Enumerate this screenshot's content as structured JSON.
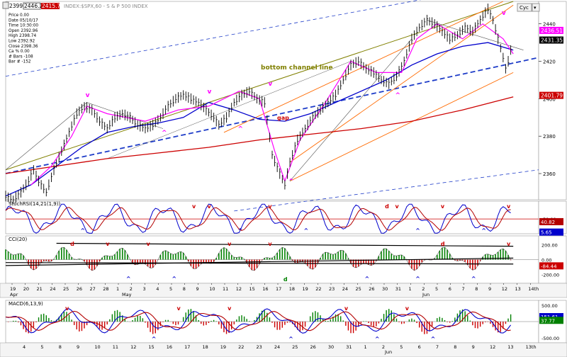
{
  "header": {
    "title": "INDEX:$SPX,60 - S & P 500 INDEX",
    "price_boxes": [
      "2399",
      "2446.20",
      "2415.70"
    ],
    "info_lines": [
      "Price 0.00",
      "Date 05/10/17",
      "Time 10:30:00",
      "Open 2392.96",
      "High 2398.74",
      "Low 2392.92",
      "Close 2398.36",
      "Ca % 0.00",
      "# Bars -108",
      "Bar # -152"
    ],
    "cyc_label": "Cyc"
  },
  "colors": {
    "price": "#000000",
    "ma_fast": "#0000cc",
    "ma_slow": "#cc0000",
    "magenta": "#ff00ff",
    "trend_olive": "#808000",
    "channel_orange": "#ff6a00",
    "dashed_blue": "#1e3cc8",
    "stoch_blue": "#0000cc",
    "stoch_red": "#b40000",
    "hist_green": "#008000",
    "hist_red": "#cc0000"
  },
  "chart_data": [
    {
      "id": "price-panel",
      "type": "line",
      "title": "",
      "x_axis": {
        "ticks": [
          "19",
          "20",
          "21",
          "24",
          "25",
          "26",
          "27",
          "28",
          "1",
          "2",
          "3",
          "4",
          "5",
          "8",
          "9",
          "10",
          "11",
          "12",
          "15",
          "16",
          "17",
          "18",
          "19",
          "22",
          "23",
          "24",
          "25",
          "26",
          "30",
          "31",
          "1",
          "2",
          "5",
          "6",
          "7",
          "8",
          "9",
          "12",
          "13",
          "14th"
        ],
        "month_labels": [
          "Apr",
          "May",
          "Jun"
        ]
      },
      "y_axis": {
        "ticks": [
          2360,
          2380,
          2400,
          2420,
          2440
        ],
        "range": [
          2346,
          2452
        ]
      },
      "price_points": [
        [
          0,
          2348
        ],
        [
          3,
          2346
        ],
        [
          6,
          2350
        ],
        [
          9,
          2356
        ],
        [
          11,
          2362
        ],
        [
          13,
          2356
        ],
        [
          16,
          2350
        ],
        [
          19,
          2362
        ],
        [
          22,
          2372
        ],
        [
          25,
          2382
        ],
        [
          28,
          2392
        ],
        [
          31,
          2396
        ],
        [
          34,
          2394
        ],
        [
          37,
          2388
        ],
        [
          40,
          2384
        ],
        [
          43,
          2390
        ],
        [
          46,
          2392
        ],
        [
          49,
          2390
        ],
        [
          52,
          2386
        ],
        [
          55,
          2384
        ],
        [
          58,
          2386
        ],
        [
          61,
          2390
        ],
        [
          64,
          2396
        ],
        [
          67,
          2400
        ],
        [
          70,
          2402
        ],
        [
          73,
          2400
        ],
        [
          76,
          2398
        ],
        [
          79,
          2394
        ],
        [
          82,
          2390
        ],
        [
          84,
          2386
        ],
        [
          87,
          2390
        ],
        [
          90,
          2398
        ],
        [
          93,
          2402
        ],
        [
          96,
          2404
        ],
        [
          99,
          2400
        ],
        [
          102,
          2398
        ],
        [
          105,
          2370
        ],
        [
          108,
          2360
        ],
        [
          110,
          2354
        ],
        [
          112,
          2366
        ],
        [
          115,
          2378
        ],
        [
          118,
          2384
        ],
        [
          121,
          2390
        ],
        [
          124,
          2394
        ],
        [
          127,
          2398
        ],
        [
          130,
          2402
        ],
        [
          133,
          2410
        ],
        [
          136,
          2418
        ],
        [
          139,
          2420
        ],
        [
          142,
          2416
        ],
        [
          145,
          2414
        ],
        [
          148,
          2410
        ],
        [
          151,
          2408
        ],
        [
          154,
          2412
        ],
        [
          157,
          2420
        ],
        [
          160,
          2432
        ],
        [
          163,
          2438
        ],
        [
          166,
          2442
        ],
        [
          169,
          2440
        ],
        [
          172,
          2436
        ],
        [
          175,
          2432
        ],
        [
          178,
          2434
        ],
        [
          181,
          2438
        ],
        [
          184,
          2436
        ],
        [
          187,
          2442
        ],
        [
          190,
          2448
        ],
        [
          192,
          2442
        ],
        [
          194,
          2432
        ],
        [
          196,
          2422
        ],
        [
          197,
          2416
        ],
        [
          198,
          2420
        ],
        [
          200,
          2432
        ]
      ],
      "overlays": [
        {
          "name": "blue moving average",
          "points": [
            [
              0,
              2348
            ],
            [
              10,
              2354
            ],
            [
              20,
              2364
            ],
            [
              30,
              2374
            ],
            [
              40,
              2382
            ],
            [
              50,
              2385
            ],
            [
              60,
              2387
            ],
            [
              70,
              2390
            ],
            [
              80,
              2398
            ],
            [
              90,
              2394
            ],
            [
              100,
              2389
            ],
            [
              110,
              2388
            ],
            [
              120,
              2392
            ],
            [
              130,
              2398
            ],
            [
              140,
              2404
            ],
            [
              150,
              2410
            ],
            [
              160,
              2418
            ],
            [
              170,
              2424
            ],
            [
              180,
              2428
            ],
            [
              190,
              2430
            ],
            [
              200,
              2426
            ]
          ]
        },
        {
          "name": "red moving average",
          "points": [
            [
              0,
              2360
            ],
            [
              20,
              2364
            ],
            [
              40,
              2368
            ],
            [
              60,
              2371
            ],
            [
              80,
              2374
            ],
            [
              100,
              2378
            ],
            [
              120,
              2381
            ],
            [
              140,
              2384
            ],
            [
              160,
              2388
            ],
            [
              180,
              2394
            ],
            [
              200,
              2401
            ]
          ]
        },
        {
          "name": "magenta line",
          "points": [
            [
              10,
              2354
            ],
            [
              18,
              2364
            ],
            [
              26,
              2380
            ],
            [
              32,
              2396
            ],
            [
              40,
              2392
            ],
            [
              55,
              2388
            ],
            [
              68,
              2394
            ],
            [
              80,
              2396
            ],
            [
              92,
              2404
            ],
            [
              100,
              2400
            ],
            [
              106,
              2372
            ],
            [
              110,
              2356
            ],
            [
              116,
              2378
            ],
            [
              126,
              2398
            ],
            [
              136,
              2420
            ],
            [
              146,
              2414
            ],
            [
              156,
              2414
            ],
            [
              162,
              2432
            ],
            [
              170,
              2440
            ],
            [
              180,
              2432
            ],
            [
              188,
              2440
            ],
            [
              196,
              2432
            ],
            [
              200,
              2424
            ]
          ]
        }
      ],
      "value_labels": [
        {
          "text": "2436.51",
          "value": 2436.51,
          "color": "#ff00ff"
        },
        {
          "text": "2431.35",
          "value": 2431.35,
          "color": "#000000"
        },
        {
          "text": "2401.79",
          "value": 2401.79,
          "color": "#cc0000"
        }
      ],
      "annotations": [
        {
          "text": "bottom channel line",
          "x": 100,
          "y": 2422,
          "color": "#808000"
        },
        {
          "text": "gap",
          "x": 102,
          "y": 2390,
          "color": "#cc0000"
        },
        {
          "text": "v",
          "x": 32,
          "y": 2402,
          "color": "#ff00ff"
        },
        {
          "text": "v",
          "x": 80,
          "y": 2404,
          "color": "#ff00ff"
        },
        {
          "text": "v",
          "x": 104,
          "y": 2408,
          "color": "#ff00ff"
        },
        {
          "text": "v",
          "x": 196,
          "y": 2446,
          "color": "#ff00ff"
        },
        {
          "text": "^",
          "x": 62,
          "y": 2382,
          "color": "#ff00ff"
        },
        {
          "text": "^",
          "x": 92,
          "y": 2384,
          "color": "#ff00ff"
        },
        {
          "text": "^",
          "x": 112,
          "y": 2356,
          "color": "#ff00ff"
        },
        {
          "text": "^",
          "x": 154,
          "y": 2402,
          "color": "#ff00ff"
        }
      ]
    },
    {
      "id": "stochrsi-panel",
      "type": "line",
      "title": "StochRSI(14,21(1,9))",
      "y_axis": {
        "ticks": [
          50
        ],
        "range": [
          0,
          110
        ]
      },
      "value_labels": [
        {
          "text": "40.82",
          "value": 40.82,
          "color": "#b40000"
        },
        {
          "text": "5.65",
          "value": 5.65,
          "color": "#0000cc"
        }
      ],
      "annotations": [
        {
          "text": "v",
          "x": 74,
          "color": "#cc0000"
        },
        {
          "text": "v",
          "x": 80,
          "color": "#cc0000"
        },
        {
          "text": "v",
          "x": 104,
          "color": "#cc0000"
        },
        {
          "text": "d",
          "x": 150,
          "color": "#cc0000"
        },
        {
          "text": "v",
          "x": 154,
          "color": "#cc0000"
        },
        {
          "text": "v",
          "x": 172,
          "color": "#cc0000"
        },
        {
          "text": "v",
          "x": 198,
          "color": "#cc0000"
        },
        {
          "text": "^",
          "x": 30,
          "color": "#0000cc"
        },
        {
          "text": "^",
          "x": 92,
          "color": "#0000cc"
        },
        {
          "text": "^",
          "x": 118,
          "color": "#0000cc"
        },
        {
          "text": "^",
          "x": 162,
          "color": "#0000cc"
        },
        {
          "text": "^",
          "x": 188,
          "color": "#0000cc"
        }
      ]
    },
    {
      "id": "cci-panel",
      "type": "bar",
      "title": "CCI(20)",
      "y_axis": {
        "ticks": [
          200,
          0,
          -200
        ],
        "tick_labels": [
          "200.00",
          "0.00",
          "-200.00"
        ],
        "range": [
          -320,
          320
        ]
      },
      "value_labels": [
        {
          "text": "-84.44",
          "value": -84.44,
          "color": "#cc0000"
        }
      ],
      "annotations": [
        {
          "text": "d",
          "x": 26,
          "color": "#cc0000"
        },
        {
          "text": "v",
          "x": 40,
          "color": "#cc0000"
        },
        {
          "text": "v",
          "x": 56,
          "color": "#cc0000"
        },
        {
          "text": "v",
          "x": 88,
          "color": "#cc0000"
        },
        {
          "text": "v",
          "x": 104,
          "color": "#cc0000"
        },
        {
          "text": "d",
          "x": 172,
          "color": "#cc0000"
        },
        {
          "text": "v",
          "x": 198,
          "color": "#cc0000"
        },
        {
          "text": "d",
          "x": 110,
          "color": "#008000"
        },
        {
          "text": "^",
          "x": 48,
          "color": "#0000cc"
        },
        {
          "text": "^",
          "x": 66,
          "color": "#0000cc"
        },
        {
          "text": "^",
          "x": 142,
          "color": "#0000cc"
        },
        {
          "text": "^",
          "x": 162,
          "color": "#0000cc"
        },
        {
          "text": "^",
          "x": 184,
          "color": "#0000cc"
        }
      ]
    },
    {
      "id": "macd-panel",
      "type": "bar",
      "title": "MACD(6,13,9)",
      "x_axis": {
        "ticks": [
          "4",
          "5",
          "8",
          "9",
          "10",
          "11",
          "12",
          "15",
          "16",
          "17",
          "18",
          "19",
          "22",
          "23",
          "24",
          "25",
          "26",
          "30",
          "31",
          "1",
          "2",
          "5",
          "6",
          "7",
          "8",
          "9",
          "12",
          "13",
          "13th"
        ],
        "month_labels": [
          "Jun"
        ]
      },
      "y_axis": {
        "ticks": [
          500,
          0,
          -500
        ],
        "tick_labels": [
          "500.00",
          "0.00",
          "-500.00"
        ],
        "range": [
          -650,
          650
        ]
      },
      "value_labels": [
        {
          "text": "151.61",
          "value": 151.61,
          "color": "#0000cc"
        },
        {
          "text": "37.77",
          "value": 37.77,
          "color": "#008000"
        }
      ],
      "annotations": [
        {
          "text": "v",
          "x": 24,
          "color": "#cc0000"
        },
        {
          "text": "v",
          "x": 68,
          "color": "#cc0000"
        },
        {
          "text": "v",
          "x": 88,
          "color": "#cc0000"
        },
        {
          "text": "v",
          "x": 134,
          "color": "#cc0000"
        },
        {
          "text": "v",
          "x": 158,
          "color": "#cc0000"
        },
        {
          "text": "^",
          "x": 58,
          "color": "#0000cc"
        },
        {
          "text": "^",
          "x": 112,
          "color": "#0000cc"
        },
        {
          "text": "^",
          "x": 146,
          "color": "#0000cc"
        },
        {
          "text": "^",
          "x": 168,
          "color": "#0000cc"
        }
      ]
    }
  ]
}
